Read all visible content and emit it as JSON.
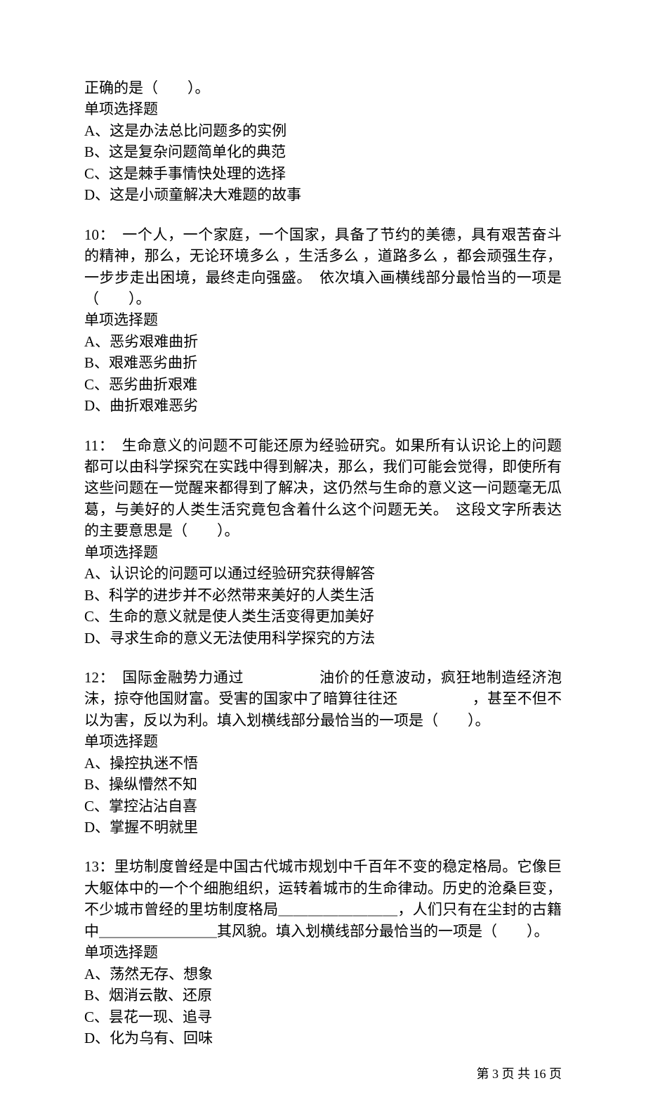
{
  "q9_tail": {
    "cont1": "正确的是（　　）。",
    "type": "单项选择题",
    "A": "A、这是办法总比问题多的实例",
    "B": "B、这是复杂问题简单化的典范",
    "C": "C、这是棘手事情快处理的选择",
    "D": "D、这是小顽童解决大难题的故事"
  },
  "q10": {
    "stem1": "10：　一个人，一个家庭，一个国家，具备了节约的美德，具有艰苦奋斗的精神，那么，无论环境多么 ，生活多么 ，道路多么 ，都会顽强生存，一步步走出困境，最终走向强盛。　依次填入画横线部分最恰当的一项是（　　）。",
    "type": "单项选择题",
    "A": "A、恶劣艰难曲折",
    "B": "B、艰难恶劣曲折",
    "C": "C、恶劣曲折艰难",
    "D": "D、曲折艰难恶劣"
  },
  "q11": {
    "stem1": "11：　生命意义的问题不可能还原为经验研究。如果所有认识论上的问题都可以由科学探究在实践中得到解决，那么，我们可能会觉得，即使所有这些问题在一觉醒来都得到了解决，这仍然与生命的意义这一问题毫无瓜葛，与美好的人类生活究竟包含着什么这个问题无关。　这段文字所表达的主要意思是（　　）。",
    "type": "单项选择题",
    "A": "A、认识论的问题可以通过经验研究获得解答",
    "B": "B、科学的进步并不必然带来美好的人类生活",
    "C": "C、生命的意义就是使人类生活变得更加美好",
    "D": "D、寻求生命的意义无法使用科学探究的方法"
  },
  "q12": {
    "stem1": "12：　国际金融势力通过　　　　　油价的任意波动，疯狂地制造经济泡沫，掠夺他国财富。受害的国家中了暗算往往还　　　　　，甚至不但不以为害，反以为利。填入划横线部分最恰当的一项是（　　）。",
    "type": "单项选择题",
    "A": "A、操控执迷不悟",
    "B": "B、操纵懵然不知",
    "C": "C、掌控沾沾自喜",
    "D": "D、掌握不明就里"
  },
  "q13": {
    "stem1": "13：里坊制度曾经是中国古代城市规划中千百年不变的稳定格局。它像巨大躯体中的一个个细胞组织，运转着城市的生命律动。历史的沧桑巨变，不少城市曾经的里坊制度格局＿＿＿＿＿＿＿＿，人们只有在尘封的古籍中＿＿＿＿＿＿＿＿其风貌。填入划横线部分最恰当的一项是（　　）。",
    "type": "单项选择题",
    "A": "A、荡然无存、想象",
    "B": "B、烟消云散、还原",
    "C": "C、昙花一现、追寻",
    "D": "D、化为乌有、回味"
  },
  "footer": {
    "text": "第 3 页 共 16 页"
  }
}
